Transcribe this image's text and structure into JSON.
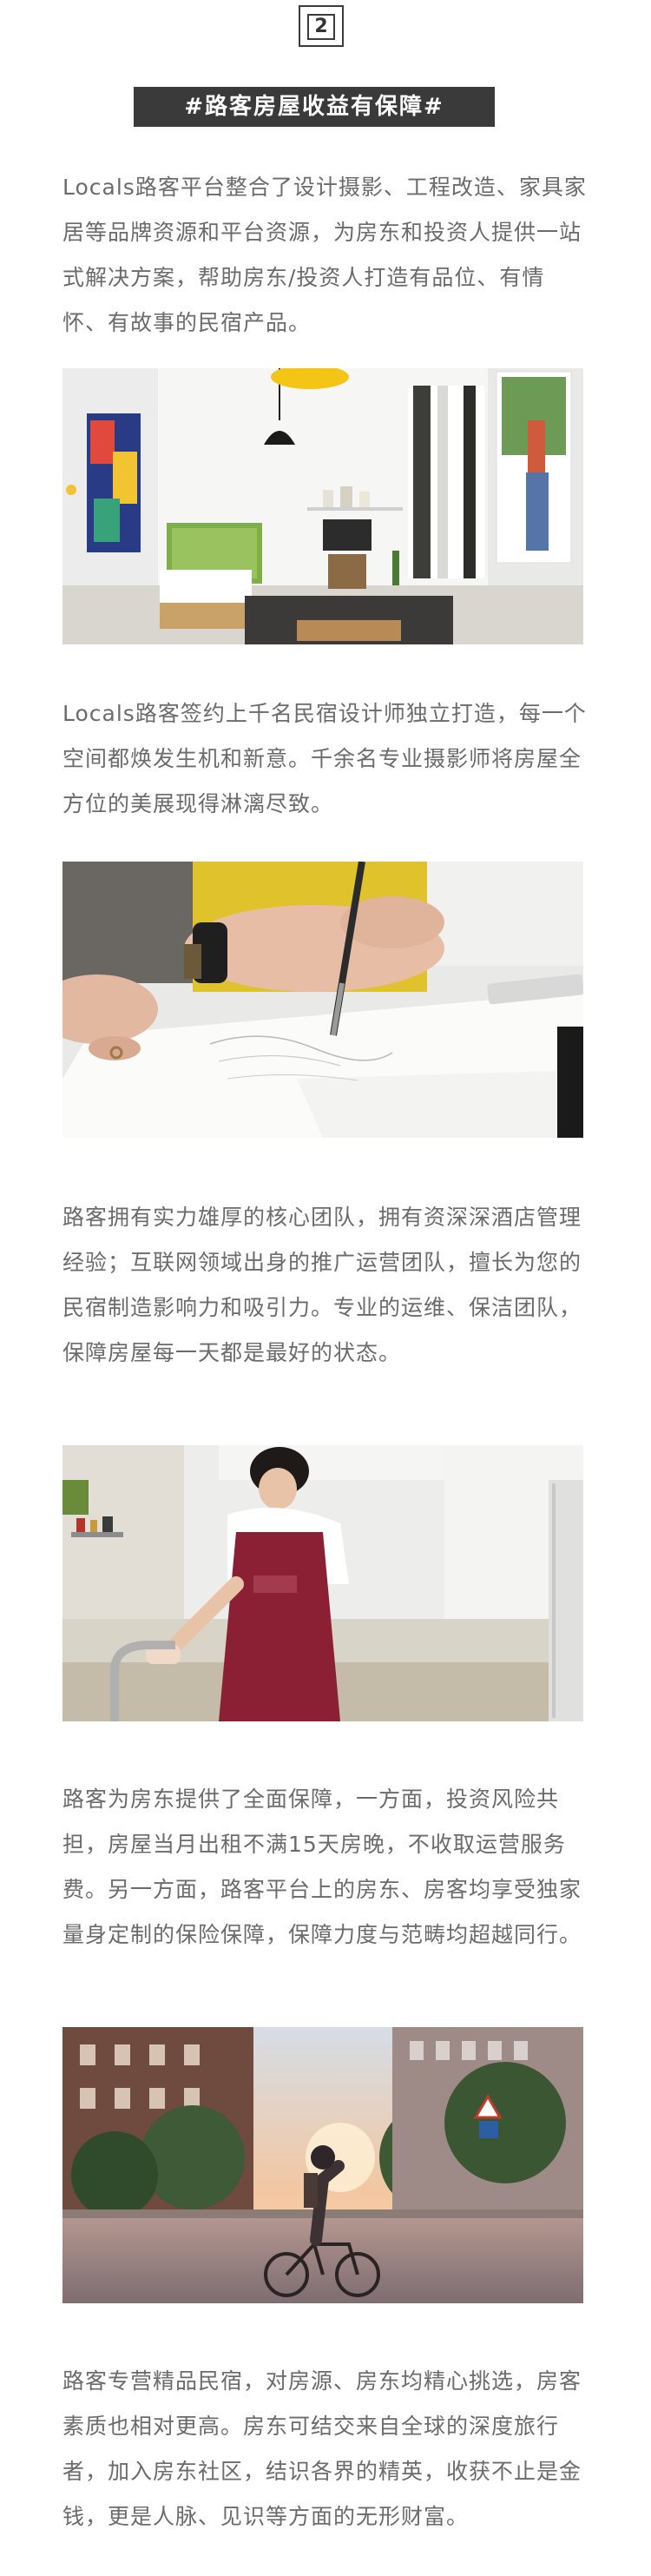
{
  "section": {
    "number": "2",
    "title": "#路客房屋收益有保障#"
  },
  "paragraphs": [
    "Locals路客平台整合了设计摄影、工程改造、家具家居等品牌资源和平台资源，为房东和投资人提供一站式解决方案，帮助房东/投资人打造有品位、有情怀、有故事的民宿产品。",
    "Locals路客签约上千名民宿设计师独立打造，每一个空间都焕发生机和新意。千余名专业摄影师将房屋全方位的美展现得淋漓尽致。",
    "路客拥有实力雄厚的核心团队，拥有资深深酒店管理经验；互联网领域出身的推广运营团队，擅长为您的民宿制造影响力和吸引力。专业的运维、保洁团队，保障房屋每一天都是最好的状态。",
    "路客为房东提供了全面保障，一方面，投资风险共担，房屋当月出租不满15天房晚，不收取运营服务费。另一方面，路客平台上的房东、房客均享受独家量身定制的保险保障，保障力度与范畴均超越同行。",
    "路客专营精品民宿，对房源、房东均精心挑选，房客素质也相对更高。房东可结交来自全球的深度旅行者，加入房东社区，结识各界的精英，收获不止是金钱，更是人脉、见识等方面的无形财富。"
  ],
  "colors": {
    "title_bg": "#3a3a3a",
    "title_text": "#ffffff",
    "body_text": "#6b6b6b"
  }
}
